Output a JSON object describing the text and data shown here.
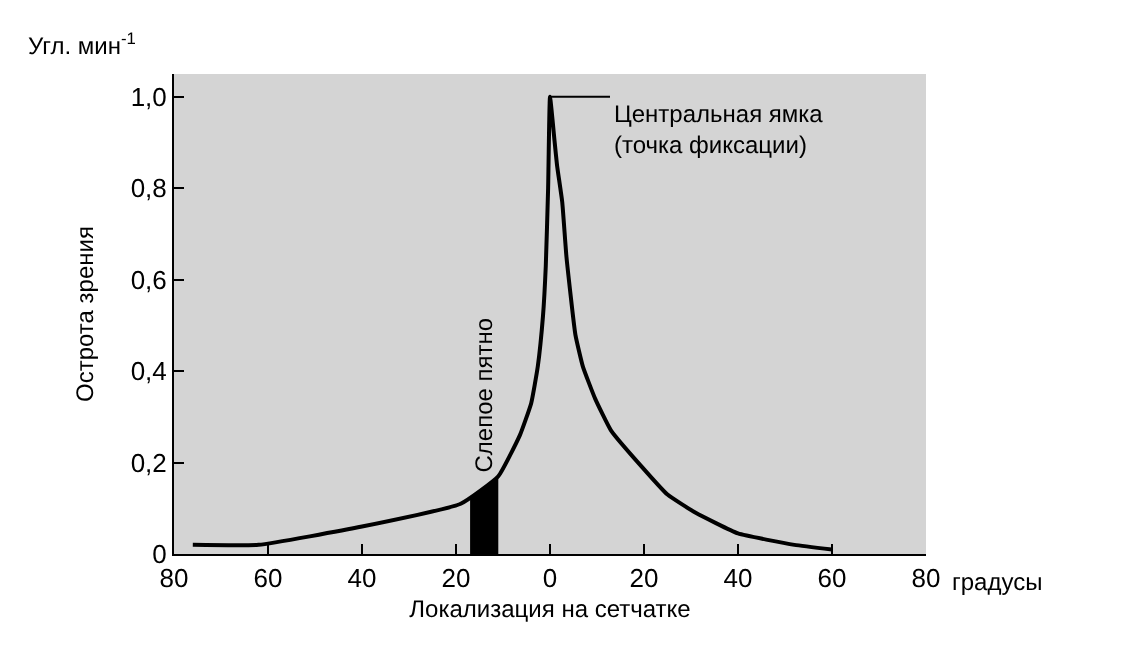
{
  "chart_data": {
    "type": "line",
    "xlabel": "Локализация на сетчатке",
    "ylabel": "Острота зрения",
    "x": [
      -76,
      -62,
      -40,
      -19,
      -11,
      -6.4,
      -4,
      -2.6,
      -1.5,
      -0.9,
      -0.4,
      0,
      1,
      1.5,
      2.6,
      3.5,
      5.4,
      7,
      9.6,
      13,
      19.6,
      25,
      31,
      40,
      52,
      60
    ],
    "series": [
      {
        "color": "#000000",
        "values": [
          0.02,
          0.02,
          0.06,
          0.11,
          0.17,
          0.26,
          0.33,
          0.41,
          0.52,
          0.63,
          0.8,
          1.0,
          0.9,
          0.85,
          0.77,
          0.65,
          0.48,
          0.41,
          0.34,
          0.27,
          0.19,
          0.13,
          0.09,
          0.045,
          0.02,
          0.01
        ]
      }
    ],
    "xlim": [
      -80,
      80
    ],
    "ylim": [
      0,
      1.05
    ],
    "xticks": [
      {
        "value": -80,
        "label": "80"
      },
      {
        "value": -60,
        "label": "60"
      },
      {
        "value": -40,
        "label": "40"
      },
      {
        "value": -20,
        "label": "20"
      },
      0,
      20,
      40,
      60,
      80
    ],
    "yticks": [
      0,
      {
        "value": 0.2,
        "label": "0,2"
      },
      {
        "value": 0.4,
        "label": "0,4"
      },
      {
        "value": 0.6,
        "label": "0,6"
      },
      {
        "value": 0.8,
        "label": "0,8"
      },
      {
        "value": 1.0,
        "label": "1,0"
      }
    ],
    "bands": [
      {
        "axis": "x",
        "from": -17,
        "to": -11,
        "label": "Слепое пятно",
        "color": "#000000"
      }
    ],
    "annotations": [
      {
        "text": "Центральная ямка (точка фиксации)",
        "x": 0,
        "y": 1.0
      },
      "Угл. мин$^{-1}$",
      "градусы"
    ],
    "grid": false,
    "marker": "none",
    "line_style": "solid"
  }
}
